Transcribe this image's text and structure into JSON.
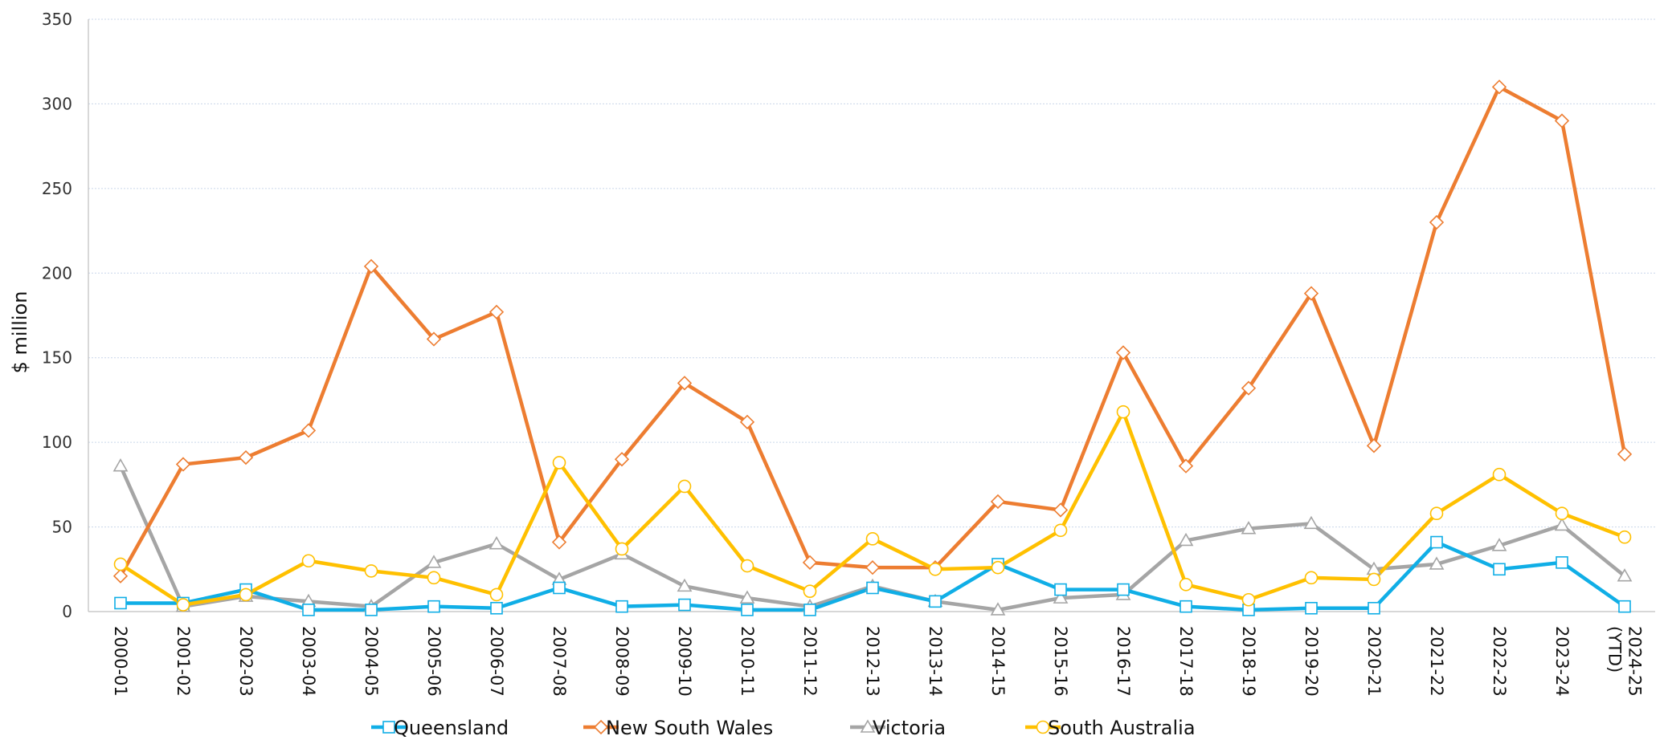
{
  "chart_data": {
    "type": "line",
    "title": "",
    "ylabel": "$ million",
    "xlabel": "",
    "ylim": [
      0,
      350
    ],
    "yticks": [
      0,
      50,
      100,
      150,
      200,
      250,
      300,
      350
    ],
    "grid": true,
    "legend_position": "bottom",
    "categories": [
      "2000-01",
      "2001-02",
      "2002-03",
      "2003-04",
      "2004-05",
      "2005-06",
      "2006-07",
      "2007-08",
      "2008-09",
      "2009-10",
      "2010-11",
      "2011-12",
      "2012-13",
      "2013-14",
      "2014-15",
      "2015-16",
      "2016-17",
      "2017-18",
      "2018-19",
      "2019-20",
      "2020-21",
      "2021-22",
      "2022-23",
      "2023-24",
      "2024-25 (YTD)"
    ],
    "category_lines": [
      [
        "2000-01"
      ],
      [
        "2001-02"
      ],
      [
        "2002-03"
      ],
      [
        "2003-04"
      ],
      [
        "2004-05"
      ],
      [
        "2005-06"
      ],
      [
        "2006-07"
      ],
      [
        "2007-08"
      ],
      [
        "2008-09"
      ],
      [
        "2009-10"
      ],
      [
        "2010-11"
      ],
      [
        "2011-12"
      ],
      [
        "2012-13"
      ],
      [
        "2013-14"
      ],
      [
        "2014-15"
      ],
      [
        "2015-16"
      ],
      [
        "2016-17"
      ],
      [
        "2017-18"
      ],
      [
        "2018-19"
      ],
      [
        "2019-20"
      ],
      [
        "2020-21"
      ],
      [
        "2021-22"
      ],
      [
        "2022-23"
      ],
      [
        "2023-24"
      ],
      [
        "2024-25",
        "(YTD)"
      ]
    ],
    "series": [
      {
        "name": "Queensland",
        "color": "#10aee6",
        "marker": "square",
        "values": [
          5,
          5,
          13,
          1,
          1,
          3,
          2,
          14,
          3,
          4,
          1,
          1,
          14,
          6,
          28,
          13,
          13,
          3,
          1,
          2,
          2,
          41,
          25,
          29,
          3
        ]
      },
      {
        "name": "New South Wales",
        "color": "#ed7d31",
        "marker": "diamond",
        "values": [
          21,
          87,
          91,
          107,
          204,
          161,
          177,
          41,
          90,
          135,
          112,
          29,
          26,
          26,
          65,
          60,
          153,
          86,
          132,
          188,
          98,
          230,
          310,
          290,
          93
        ]
      },
      {
        "name": "Victoria",
        "color": "#a5a5a5",
        "marker": "triangle",
        "values": [
          86,
          3,
          9,
          6,
          3,
          29,
          40,
          19,
          34,
          15,
          8,
          3,
          15,
          6,
          1,
          8,
          10,
          42,
          49,
          52,
          25,
          28,
          39,
          51,
          21
        ]
      },
      {
        "name": "South Australia",
        "color": "#ffc000",
        "marker": "circle",
        "values": [
          28,
          4,
          10,
          30,
          24,
          20,
          10,
          88,
          37,
          74,
          27,
          12,
          43,
          25,
          26,
          48,
          118,
          16,
          7,
          20,
          19,
          58,
          81,
          58,
          44
        ]
      }
    ]
  }
}
